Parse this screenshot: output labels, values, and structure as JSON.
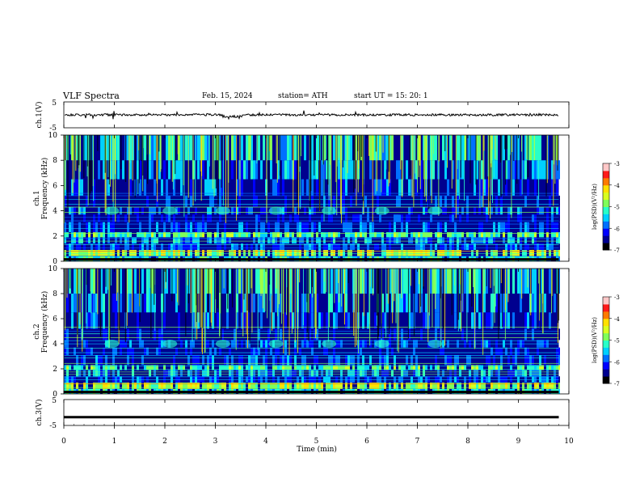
{
  "header": {
    "title": "VLF  Spectra",
    "date": "Feb. 15, 2024",
    "station": "station= ATH",
    "start": "start  UT  =   15: 20: 1"
  },
  "colors": {
    "ink": "#000000",
    "spectrogram_floor": "#08108a",
    "colormap": [
      "#000000",
      "#00008f",
      "#0000ff",
      "#0070ff",
      "#00d0ff",
      "#28ffc8",
      "#7fff5a",
      "#d8ff20",
      "#ffe000",
      "#ff7a00",
      "#ff1a1a",
      "#ffc8c8"
    ]
  },
  "chart_data": [
    {
      "type": "line",
      "name": "ch1-voltage",
      "ylabel": "ch.1(V)",
      "ylim": [
        -5,
        5
      ],
      "yticks": [
        "5",
        "-5"
      ],
      "x_range_min": [
        0,
        10
      ],
      "values_summary": {
        "mean": 0.0,
        "amplitude": 0.7
      }
    },
    {
      "type": "heatmap",
      "name": "ch1-spectrogram",
      "ylabel": [
        "ch.1",
        "Frequency  (kHz)"
      ],
      "ylim": [
        0,
        10
      ],
      "yticks": [
        "0",
        "2",
        "4",
        "6",
        "8",
        "10"
      ],
      "x_data_end": 9.8,
      "colorbar": {
        "label": "log(PSD)(V²/Hz)",
        "range": [
          -7,
          -3
        ],
        "ticks": [
          "-3",
          "-4",
          "-5",
          "-6",
          "-7"
        ]
      }
    },
    {
      "type": "heatmap",
      "name": "ch2-spectrogram",
      "ylabel": [
        "ch.2",
        "Frequency  (kHz)"
      ],
      "ylim": [
        0,
        10
      ],
      "yticks": [
        "0",
        "2",
        "4",
        "6",
        "8",
        "10"
      ],
      "x_data_end": 9.8,
      "colorbar": {
        "label": "log(PSD)(V²/Hz)",
        "range": [
          -7,
          -3
        ],
        "ticks": [
          "-3",
          "-4",
          "-5",
          "-6",
          "-7"
        ]
      }
    },
    {
      "type": "line",
      "name": "ch3-voltage",
      "ylabel": "ch.3(V)",
      "ylim": [
        -5,
        5
      ],
      "yticks": [
        "5",
        "-5"
      ],
      "values_summary": {
        "mean": -1.8,
        "amplitude": 0.0
      }
    },
    {
      "type": "axis",
      "name": "time-axis",
      "xlabel": "Time  (min)",
      "xlim": [
        0,
        10
      ],
      "xticks": [
        "0",
        "1",
        "2",
        "3",
        "4",
        "5",
        "6",
        "7",
        "8",
        "9",
        "10"
      ]
    }
  ]
}
